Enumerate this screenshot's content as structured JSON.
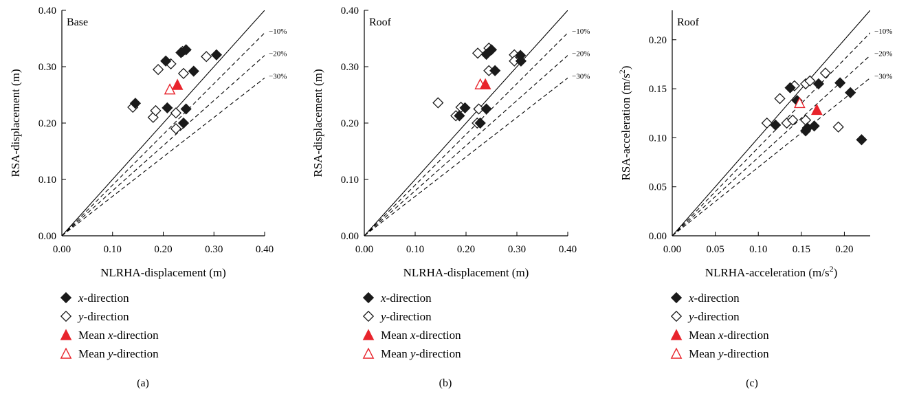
{
  "colors": {
    "filled": "#1a1a1a",
    "mean": "#e8242c",
    "axis": "#000000"
  },
  "marker_names": {
    "filled_diamond": "filled-diamond-icon",
    "open_diamond": "open-diamond-icon",
    "filled_triangle": "filled-triangle-icon",
    "open_triangle": "open-triangle-icon"
  },
  "reference_lines": [
    "−10%",
    "−20%",
    "−30%"
  ],
  "chart_data": [
    {
      "type": "scatter",
      "panel_label": "(a)",
      "corner_label": "Base",
      "xlabel": "NLRHA-displacement (m)",
      "ylabel": "RSA-displacement (m)",
      "xlim": [
        0,
        0.4
      ],
      "ylim": [
        0,
        0.4
      ],
      "xticks": [
        "0.00",
        "0.10",
        "0.20",
        "0.30",
        "0.40"
      ],
      "yticks": [
        "0.00",
        "0.10",
        "0.20",
        "0.30",
        "0.40"
      ],
      "xtick_values": [
        0,
        0.1,
        0.2,
        0.3,
        0.4
      ],
      "ytick_values": [
        0,
        0.1,
        0.2,
        0.3,
        0.4
      ],
      "legend": {
        "x": {
          "italic": "x",
          "rest": "-direction"
        },
        "y": {
          "italic": "y",
          "rest": "-direction"
        },
        "mean_x": {
          "prefix": "Mean ",
          "italic": "x",
          "rest": "-direction"
        },
        "mean_y": {
          "prefix": "Mean ",
          "italic": "y",
          "rest": "-direction"
        }
      },
      "x_direction": [
        [
          0.145,
          0.235
        ],
        [
          0.205,
          0.31
        ],
        [
          0.208,
          0.227
        ],
        [
          0.235,
          0.325
        ],
        [
          0.245,
          0.33
        ],
        [
          0.26,
          0.292
        ],
        [
          0.305,
          0.321
        ],
        [
          0.245,
          0.225
        ],
        [
          0.24,
          0.2
        ]
      ],
      "y_direction": [
        [
          0.14,
          0.228
        ],
        [
          0.18,
          0.21
        ],
        [
          0.185,
          0.222
        ],
        [
          0.19,
          0.295
        ],
        [
          0.215,
          0.305
        ],
        [
          0.238,
          0.327
        ],
        [
          0.24,
          0.288
        ],
        [
          0.285,
          0.318
        ],
        [
          0.225,
          0.218
        ],
        [
          0.225,
          0.19
        ]
      ],
      "mean_x": [
        [
          0.228,
          0.267
        ]
      ],
      "mean_y": [
        [
          0.213,
          0.259
        ]
      ]
    },
    {
      "type": "scatter",
      "panel_label": "(b)",
      "corner_label": "Roof",
      "xlabel": "NLRHA-displacement (m)",
      "ylabel": "RSA-displacement (m)",
      "xlim": [
        0,
        0.4
      ],
      "ylim": [
        0,
        0.4
      ],
      "xticks": [
        "0.00",
        "0.10",
        "0.20",
        "0.30",
        "0.40"
      ],
      "yticks": [
        "0.00",
        "0.10",
        "0.20",
        "0.30",
        "0.40"
      ],
      "xtick_values": [
        0,
        0.1,
        0.2,
        0.3,
        0.4
      ],
      "ytick_values": [
        0,
        0.1,
        0.2,
        0.3,
        0.4
      ],
      "legend": {
        "x": {
          "italic": "x",
          "rest": "-direction"
        },
        "y": {
          "italic": "y",
          "rest": "-direction"
        },
        "mean_x": {
          "prefix": "Mean ",
          "italic": "x",
          "rest": "-direction"
        },
        "mean_y": {
          "prefix": "Mean ",
          "italic": "y",
          "rest": "-direction"
        }
      },
      "x_direction": [
        [
          0.198,
          0.227
        ],
        [
          0.187,
          0.213
        ],
        [
          0.24,
          0.225
        ],
        [
          0.228,
          0.2
        ],
        [
          0.24,
          0.322
        ],
        [
          0.25,
          0.33
        ],
        [
          0.257,
          0.293
        ],
        [
          0.307,
          0.32
        ],
        [
          0.308,
          0.31
        ]
      ],
      "y_direction": [
        [
          0.145,
          0.236
        ],
        [
          0.18,
          0.213
        ],
        [
          0.19,
          0.228
        ],
        [
          0.223,
          0.324
        ],
        [
          0.245,
          0.333
        ],
        [
          0.245,
          0.293
        ],
        [
          0.295,
          0.321
        ],
        [
          0.295,
          0.31
        ],
        [
          0.225,
          0.225
        ],
        [
          0.222,
          0.2
        ]
      ],
      "mean_x": [
        [
          0.238,
          0.268
        ]
      ],
      "mean_y": [
        [
          0.228,
          0.268
        ]
      ]
    },
    {
      "type": "scatter",
      "panel_label": "(c)",
      "corner_label": "Roof",
      "xlabel_main": "NLRHA-acceleration (m/s",
      "xlabel_sup": "2",
      "xlabel_end": ")",
      "ylabel_main": "RSA-acceleration (m/s",
      "ylabel_sup": "2",
      "ylabel_end": ")",
      "xlim": [
        0,
        0.23
      ],
      "ylim": [
        0,
        0.23
      ],
      "xticks": [
        "0.00",
        "0.05",
        "0.10",
        "0.15",
        "0.20"
      ],
      "yticks": [
        "0.00",
        "0.05",
        "0.10",
        "0.15",
        "0.20"
      ],
      "xtick_values": [
        0,
        0.05,
        0.1,
        0.15,
        0.2
      ],
      "ytick_values": [
        0,
        0.05,
        0.1,
        0.15,
        0.2
      ],
      "legend": {
        "x": {
          "italic": "x",
          "rest": "-direction"
        },
        "y": {
          "italic": "y",
          "rest": "-direction"
        },
        "mean_x": {
          "prefix": "Mean ",
          "italic": "x",
          "rest": "-direction"
        },
        "mean_y": {
          "prefix": "Mean ",
          "italic": "y",
          "rest": "-direction"
        }
      },
      "x_direction": [
        [
          0.12,
          0.113
        ],
        [
          0.137,
          0.151
        ],
        [
          0.145,
          0.138
        ],
        [
          0.155,
          0.107
        ],
        [
          0.157,
          0.11
        ],
        [
          0.165,
          0.112
        ],
        [
          0.17,
          0.155
        ],
        [
          0.195,
          0.156
        ],
        [
          0.207,
          0.146
        ],
        [
          0.22,
          0.098
        ]
      ],
      "y_direction": [
        [
          0.11,
          0.115
        ],
        [
          0.125,
          0.14
        ],
        [
          0.133,
          0.115
        ],
        [
          0.14,
          0.118
        ],
        [
          0.142,
          0.153
        ],
        [
          0.155,
          0.155
        ],
        [
          0.16,
          0.158
        ],
        [
          0.178,
          0.166
        ],
        [
          0.155,
          0.118
        ],
        [
          0.193,
          0.111
        ]
      ],
      "mean_x": [
        [
          0.168,
          0.128
        ]
      ],
      "mean_y": [
        [
          0.148,
          0.135
        ]
      ]
    }
  ]
}
